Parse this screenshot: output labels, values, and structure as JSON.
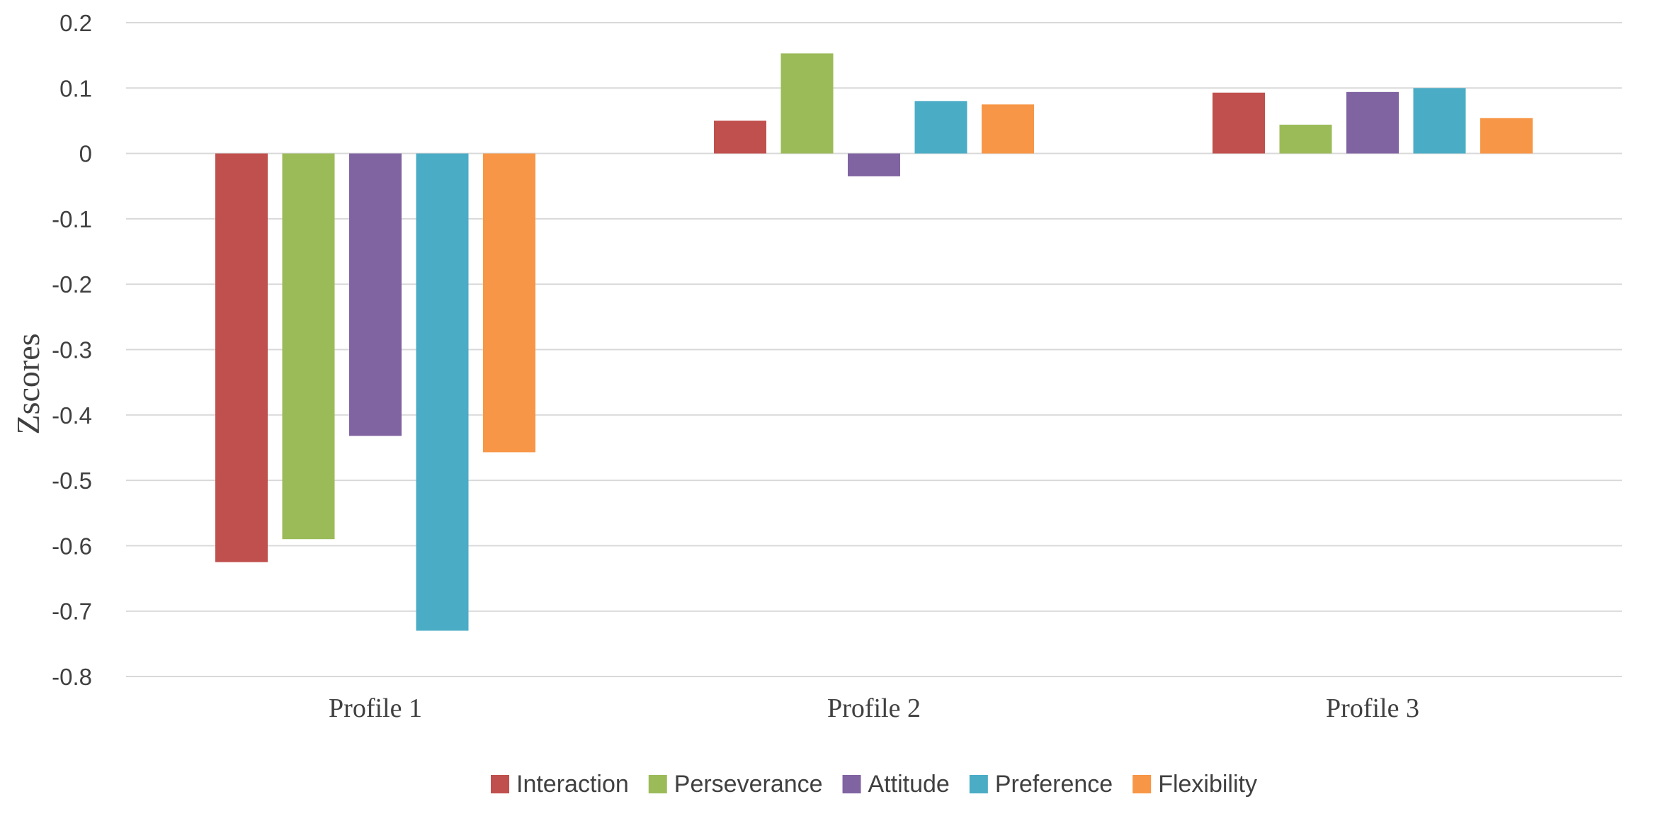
{
  "chart_data": {
    "type": "bar",
    "title": "",
    "xlabel": "",
    "ylabel": "Zscores",
    "ylim": [
      -0.8,
      0.2
    ],
    "ytick_step": 0.1,
    "yticks": [
      "0.2",
      "0.1",
      "0",
      "-0.1",
      "-0.2",
      "-0.3",
      "-0.4",
      "-0.5",
      "-0.6",
      "-0.7",
      "-0.8"
    ],
    "grid": true,
    "legend_position": "bottom",
    "categories": [
      "Profile 1",
      "Profile 2",
      "Profile 3"
    ],
    "series": [
      {
        "name": "Interaction",
        "color": "#C0504D",
        "values": [
          -0.625,
          0.05,
          0.093
        ]
      },
      {
        "name": "Perseverance",
        "color": "#9BBB59",
        "values": [
          -0.59,
          0.153,
          0.044
        ]
      },
      {
        "name": "Attitude",
        "color": "#8064A2",
        "values": [
          -0.432,
          -0.035,
          0.094
        ]
      },
      {
        "name": "Preference",
        "color": "#4BACC6",
        "values": [
          -0.73,
          0.08,
          0.1
        ]
      },
      {
        "name": "Flexibility",
        "color": "#F79646",
        "values": [
          -0.457,
          0.075,
          0.054
        ]
      }
    ]
  }
}
